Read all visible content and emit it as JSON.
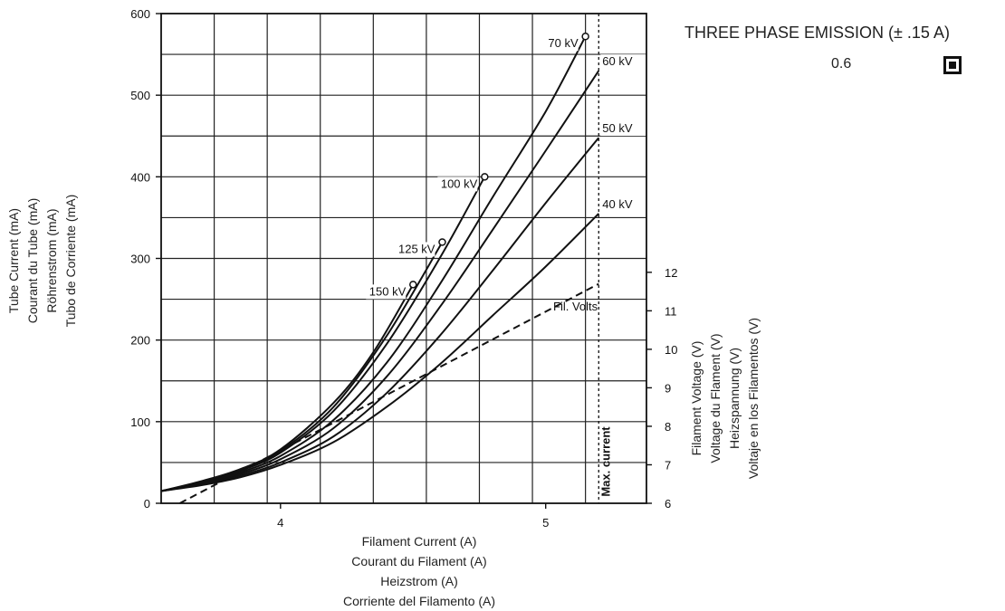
{
  "chart_data": {
    "type": "line",
    "x_axis": {
      "min": 3.55,
      "max": 5.38,
      "ticks": [
        4,
        5
      ],
      "label_lines": [
        "Filament Current (A)",
        "Courant du Filament (A)",
        "Heizstrom (A)",
        "Corriente del Filamento (A)"
      ]
    },
    "y_axis": {
      "min": 0,
      "max": 600,
      "ticks": [
        0,
        100,
        200,
        300,
        400,
        500,
        600
      ],
      "grid_step": 50,
      "label_lines": [
        "Tube Current (mA)",
        "Courant du Tube (mA)",
        "Röhrenstrom (mA)",
        "Tubo de Corriente (mA)"
      ]
    },
    "y2_axis": {
      "min": 6,
      "max": 12,
      "ticks": [
        6,
        7,
        8,
        9,
        10,
        11,
        12
      ],
      "label_lines": [
        "Filament Voltage (V)",
        "Voltage du Flament  (V)",
        "Heizspannung (V)",
        "Voltaje en los Filamentos (V)"
      ]
    },
    "grid_x": [
      3.55,
      3.75,
      3.95,
      4.15,
      4.35,
      4.55,
      4.75,
      4.95,
      5.15,
      5.38
    ],
    "max_current": {
      "x": 5.2,
      "label": "Max. current"
    },
    "series": [
      {
        "name": "40 kV",
        "label": "40 kV",
        "end_marker": false,
        "x": [
          3.55,
          3.7,
          3.85,
          4.0,
          4.2,
          4.4,
          4.6,
          4.8,
          5.0,
          5.2
        ],
        "y": [
          15,
          22,
          32,
          47,
          75,
          118,
          170,
          230,
          290,
          355
        ]
      },
      {
        "name": "50 kV",
        "label": "50 kV",
        "end_marker": false,
        "x": [
          3.55,
          3.7,
          3.85,
          4.0,
          4.2,
          4.4,
          4.6,
          4.8,
          5.0,
          5.2
        ],
        "y": [
          15,
          23,
          34,
          50,
          82,
          135,
          205,
          285,
          368,
          448
        ]
      },
      {
        "name": "60 kV",
        "label": "60 kV",
        "end_marker": false,
        "x": [
          3.55,
          3.7,
          3.85,
          4.0,
          4.2,
          4.4,
          4.6,
          4.8,
          5.0,
          5.2
        ],
        "y": [
          15,
          24,
          36,
          54,
          92,
          155,
          240,
          335,
          432,
          530
        ]
      },
      {
        "name": "70 kV",
        "label": "70 kV",
        "end_marker": true,
        "x": [
          3.55,
          3.7,
          3.85,
          4.0,
          4.2,
          4.4,
          4.6,
          4.8,
          5.0,
          5.15
        ],
        "y": [
          15,
          25,
          38,
          58,
          102,
          172,
          268,
          375,
          480,
          572
        ]
      },
      {
        "name": "100 kV",
        "label": "100 kV",
        "end_marker": true,
        "x": [
          3.55,
          3.7,
          3.85,
          4.0,
          4.2,
          4.4,
          4.6,
          4.77
        ],
        "y": [
          15,
          26,
          40,
          62,
          113,
          195,
          300,
          400
        ]
      },
      {
        "name": "125 kV",
        "label": "125 kV",
        "end_marker": true,
        "x": [
          3.55,
          3.7,
          3.85,
          4.0,
          4.2,
          4.4,
          4.61
        ],
        "y": [
          15,
          26,
          41,
          64,
          118,
          205,
          320
        ]
      },
      {
        "name": "150 kV",
        "label": "150 kV",
        "end_marker": true,
        "x": [
          3.55,
          3.7,
          3.85,
          4.0,
          4.2,
          4.35,
          4.5
        ],
        "y": [
          15,
          27,
          42,
          66,
          123,
          185,
          268
        ]
      }
    ],
    "fil_volts": {
      "label": "Fil. Volts",
      "x": [
        3.62,
        5.2
      ],
      "v": [
        6.0,
        11.7
      ]
    }
  },
  "legend": {
    "title": "THREE PHASE EMISSION (± .15 A)",
    "value": "0.6",
    "swatch_color": "#111111"
  }
}
